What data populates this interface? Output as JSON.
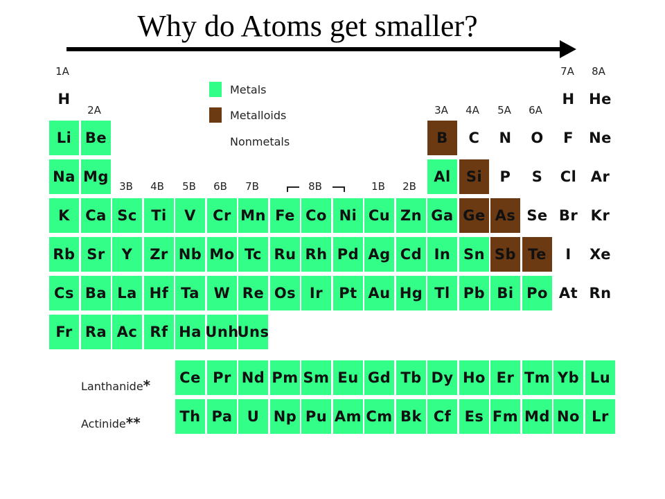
{
  "title": "Why do Atoms get smaller?",
  "legend": {
    "metals": "Metals",
    "metalloids": "Metalloids",
    "nonmetals": "Nonmetals"
  },
  "colors": {
    "metal": "#33ff88",
    "metalloid": "#6b3a12",
    "arrow": "#000000"
  },
  "group_labels": {
    "g1": "1A",
    "g2": "2A",
    "g3": "3B",
    "g4": "4B",
    "g5": "5B",
    "g6": "6B",
    "g7": "7B",
    "g8": "8B",
    "g11": "1B",
    "g12": "2B",
    "g13": "3A",
    "g14": "4A",
    "g15": "5A",
    "g16": "6A",
    "g17": "7A",
    "g18": "8A"
  },
  "series_labels": {
    "lanthanide": "Lanthanide",
    "lanthanide_mark": "*",
    "actinide": "Actinide",
    "actinide_mark": "**"
  },
  "markers": {
    "la": "*",
    "ac": "**"
  },
  "elements": [
    {
      "s": "H",
      "t": "nonmetal",
      "r": 0,
      "c": 0
    },
    {
      "s": "H",
      "t": "nonmetal",
      "r": 0,
      "c": 16
    },
    {
      "s": "He",
      "t": "nonmetal",
      "r": 0,
      "c": 17
    },
    {
      "s": "Li",
      "t": "metal",
      "r": 1,
      "c": 0
    },
    {
      "s": "Be",
      "t": "metal",
      "r": 1,
      "c": 1
    },
    {
      "s": "B",
      "t": "metalloid",
      "r": 1,
      "c": 12
    },
    {
      "s": "C",
      "t": "nonmetal",
      "r": 1,
      "c": 13
    },
    {
      "s": "N",
      "t": "nonmetal",
      "r": 1,
      "c": 14
    },
    {
      "s": "O",
      "t": "nonmetal",
      "r": 1,
      "c": 15
    },
    {
      "s": "F",
      "t": "nonmetal",
      "r": 1,
      "c": 16
    },
    {
      "s": "Ne",
      "t": "nonmetal",
      "r": 1,
      "c": 17
    },
    {
      "s": "Na",
      "t": "metal",
      "r": 2,
      "c": 0
    },
    {
      "s": "Mg",
      "t": "metal",
      "r": 2,
      "c": 1
    },
    {
      "s": "Al",
      "t": "metal",
      "r": 2,
      "c": 12
    },
    {
      "s": "Si",
      "t": "metalloid",
      "r": 2,
      "c": 13
    },
    {
      "s": "P",
      "t": "nonmetal",
      "r": 2,
      "c": 14
    },
    {
      "s": "S",
      "t": "nonmetal",
      "r": 2,
      "c": 15
    },
    {
      "s": "Cl",
      "t": "nonmetal",
      "r": 2,
      "c": 16
    },
    {
      "s": "Ar",
      "t": "nonmetal",
      "r": 2,
      "c": 17
    },
    {
      "s": "K",
      "t": "metal",
      "r": 3,
      "c": 0
    },
    {
      "s": "Ca",
      "t": "metal",
      "r": 3,
      "c": 1
    },
    {
      "s": "Sc",
      "t": "metal",
      "r": 3,
      "c": 2
    },
    {
      "s": "Ti",
      "t": "metal",
      "r": 3,
      "c": 3
    },
    {
      "s": "V",
      "t": "metal",
      "r": 3,
      "c": 4
    },
    {
      "s": "Cr",
      "t": "metal",
      "r": 3,
      "c": 5
    },
    {
      "s": "Mn",
      "t": "metal",
      "r": 3,
      "c": 6
    },
    {
      "s": "Fe",
      "t": "metal",
      "r": 3,
      "c": 7
    },
    {
      "s": "Co",
      "t": "metal",
      "r": 3,
      "c": 8
    },
    {
      "s": "Ni",
      "t": "metal",
      "r": 3,
      "c": 9
    },
    {
      "s": "Cu",
      "t": "metal",
      "r": 3,
      "c": 10
    },
    {
      "s": "Zn",
      "t": "metal",
      "r": 3,
      "c": 11
    },
    {
      "s": "Ga",
      "t": "metal",
      "r": 3,
      "c": 12
    },
    {
      "s": "Ge",
      "t": "metalloid",
      "r": 3,
      "c": 13
    },
    {
      "s": "As",
      "t": "metalloid",
      "r": 3,
      "c": 14
    },
    {
      "s": "Se",
      "t": "nonmetal",
      "r": 3,
      "c": 15
    },
    {
      "s": "Br",
      "t": "nonmetal",
      "r": 3,
      "c": 16
    },
    {
      "s": "Kr",
      "t": "nonmetal",
      "r": 3,
      "c": 17
    },
    {
      "s": "Rb",
      "t": "metal",
      "r": 4,
      "c": 0
    },
    {
      "s": "Sr",
      "t": "metal",
      "r": 4,
      "c": 1
    },
    {
      "s": "Y",
      "t": "metal",
      "r": 4,
      "c": 2
    },
    {
      "s": "Zr",
      "t": "metal",
      "r": 4,
      "c": 3
    },
    {
      "s": "Nb",
      "t": "metal",
      "r": 4,
      "c": 4
    },
    {
      "s": "Mo",
      "t": "metal",
      "r": 4,
      "c": 5
    },
    {
      "s": "Tc",
      "t": "metal",
      "r": 4,
      "c": 6
    },
    {
      "s": "Ru",
      "t": "metal",
      "r": 4,
      "c": 7
    },
    {
      "s": "Rh",
      "t": "metal",
      "r": 4,
      "c": 8
    },
    {
      "s": "Pd",
      "t": "metal",
      "r": 4,
      "c": 9
    },
    {
      "s": "Ag",
      "t": "metal",
      "r": 4,
      "c": 10
    },
    {
      "s": "Cd",
      "t": "metal",
      "r": 4,
      "c": 11
    },
    {
      "s": "In",
      "t": "metal",
      "r": 4,
      "c": 12
    },
    {
      "s": "Sn",
      "t": "metal",
      "r": 4,
      "c": 13
    },
    {
      "s": "Sb",
      "t": "metalloid",
      "r": 4,
      "c": 14
    },
    {
      "s": "Te",
      "t": "metalloid",
      "r": 4,
      "c": 15
    },
    {
      "s": "I",
      "t": "nonmetal",
      "r": 4,
      "c": 16
    },
    {
      "s": "Xe",
      "t": "nonmetal",
      "r": 4,
      "c": 17
    },
    {
      "s": "Cs",
      "t": "metal",
      "r": 5,
      "c": 0
    },
    {
      "s": "Ba",
      "t": "metal",
      "r": 5,
      "c": 1
    },
    {
      "s": "La",
      "t": "metal",
      "r": 5,
      "c": 2
    },
    {
      "s": "Hf",
      "t": "metal",
      "r": 5,
      "c": 3
    },
    {
      "s": "Ta",
      "t": "metal",
      "r": 5,
      "c": 4
    },
    {
      "s": "W",
      "t": "metal",
      "r": 5,
      "c": 5
    },
    {
      "s": "Re",
      "t": "metal",
      "r": 5,
      "c": 6
    },
    {
      "s": "Os",
      "t": "metal",
      "r": 5,
      "c": 7
    },
    {
      "s": "Ir",
      "t": "metal",
      "r": 5,
      "c": 8
    },
    {
      "s": "Pt",
      "t": "metal",
      "r": 5,
      "c": 9
    },
    {
      "s": "Au",
      "t": "metal",
      "r": 5,
      "c": 10
    },
    {
      "s": "Hg",
      "t": "metal",
      "r": 5,
      "c": 11
    },
    {
      "s": "Tl",
      "t": "metal",
      "r": 5,
      "c": 12
    },
    {
      "s": "Pb",
      "t": "metal",
      "r": 5,
      "c": 13
    },
    {
      "s": "Bi",
      "t": "metal",
      "r": 5,
      "c": 14
    },
    {
      "s": "Po",
      "t": "metal",
      "r": 5,
      "c": 15
    },
    {
      "s": "At",
      "t": "nonmetal",
      "r": 5,
      "c": 16
    },
    {
      "s": "Rn",
      "t": "nonmetal",
      "r": 5,
      "c": 17
    },
    {
      "s": "Fr",
      "t": "metal",
      "r": 6,
      "c": 0
    },
    {
      "s": "Ra",
      "t": "metal",
      "r": 6,
      "c": 1
    },
    {
      "s": "Ac",
      "t": "metal",
      "r": 6,
      "c": 2
    },
    {
      "s": "Rf",
      "t": "metal",
      "r": 6,
      "c": 3
    },
    {
      "s": "Ha",
      "t": "metal",
      "r": 6,
      "c": 4
    },
    {
      "s": "Unh",
      "t": "metal",
      "r": 6,
      "c": 5
    },
    {
      "s": "Uns",
      "t": "metal",
      "r": 6,
      "c": 6
    }
  ],
  "lanthanides": [
    "Ce",
    "Pr",
    "Nd",
    "Pm",
    "Sm",
    "Eu",
    "Gd",
    "Tb",
    "Dy",
    "Ho",
    "Er",
    "Tm",
    "Yb",
    "Lu"
  ],
  "actinides": [
    "Th",
    "Pa",
    "U",
    "Np",
    "Pu",
    "Am",
    "Cm",
    "Bk",
    "Cf",
    "Es",
    "Fm",
    "Md",
    "No",
    "Lr"
  ]
}
